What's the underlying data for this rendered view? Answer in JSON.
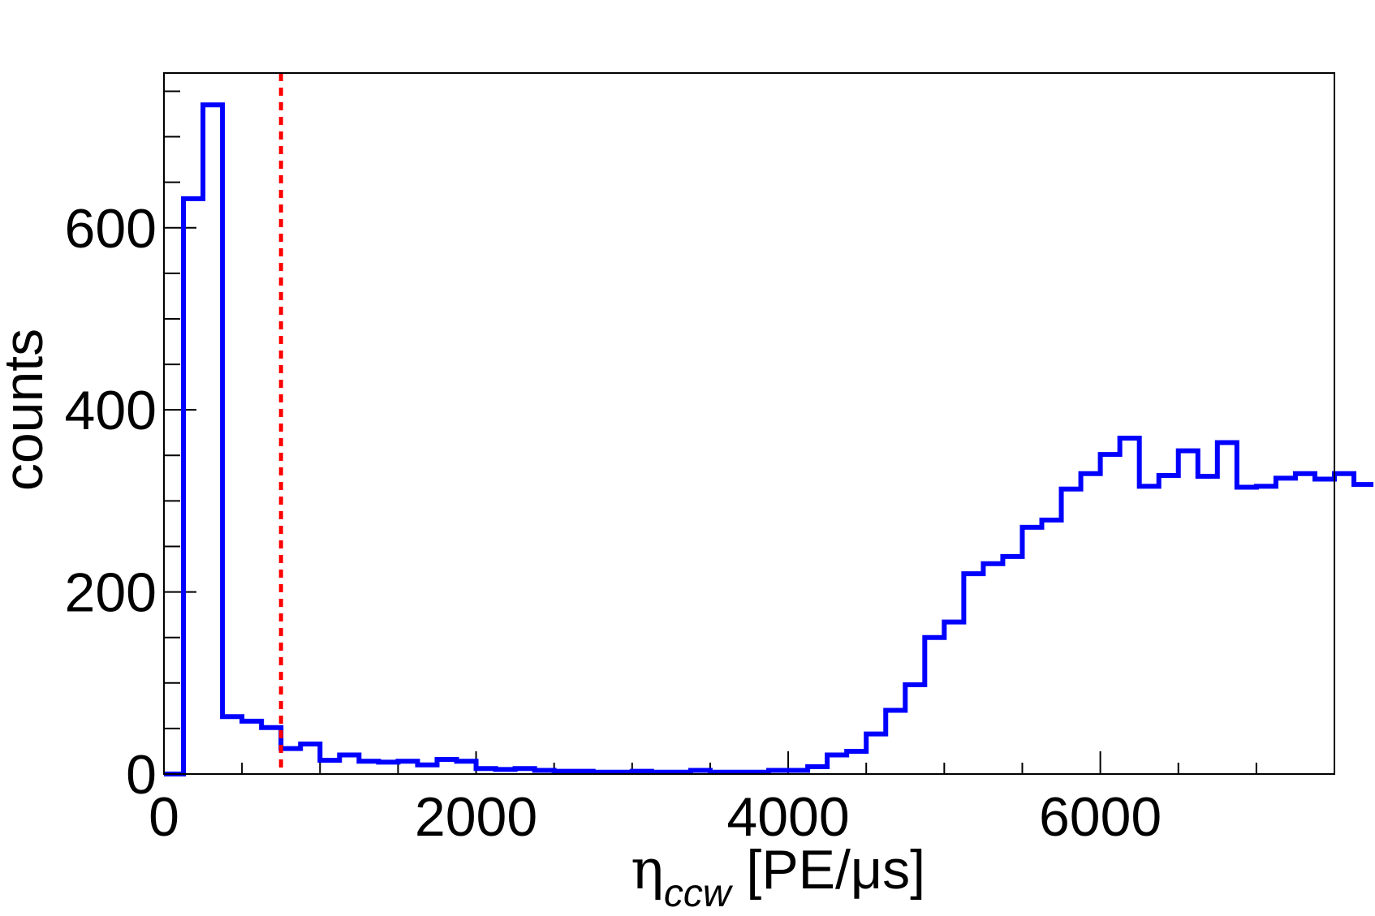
{
  "chart_data": {
    "type": "histogram",
    "title": "",
    "xlabel": {
      "symbol": "η",
      "subscript": "ccw",
      "unit": " [PE/μs]"
    },
    "ylabel": "counts",
    "xlim": [
      0,
      7500
    ],
    "ylim": [
      0,
      770
    ],
    "x_ticks": [
      0,
      2000,
      4000,
      6000
    ],
    "y_ticks": [
      0,
      200,
      400,
      600
    ],
    "x_minor_step": 500,
    "y_minor_step": 50,
    "grid": false,
    "series": [
      {
        "bin_width": 125,
        "bin_start": 0,
        "color": "#0000ff",
        "values": [
          0,
          632,
          735,
          63,
          58,
          51,
          28,
          33,
          15,
          21,
          14,
          13,
          14,
          10,
          16,
          14,
          6,
          5,
          6,
          4,
          3,
          3,
          2,
          2,
          3,
          2,
          2,
          4,
          2,
          2,
          2,
          4,
          4,
          8,
          21,
          25,
          44,
          70,
          98,
          150,
          167,
          220,
          231,
          239,
          271,
          279,
          313,
          330,
          351,
          369,
          316,
          328,
          355,
          327,
          364,
          315,
          316,
          325,
          330,
          324,
          330,
          318
        ]
      }
    ],
    "cut_line": {
      "x": 750,
      "color": "#ff0000",
      "style": "dotted"
    }
  }
}
